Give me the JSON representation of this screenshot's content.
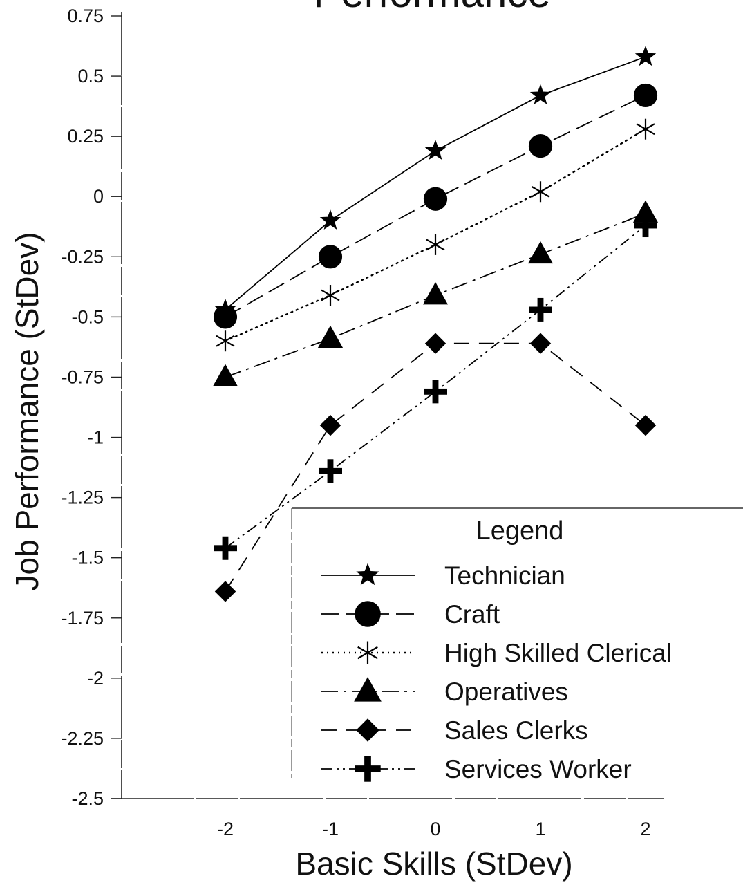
{
  "chart_data": {
    "type": "line",
    "title": "Performance",
    "xlabel": "Basic Skills (StDev)",
    "ylabel": "Job Performance (StDev)",
    "x": [
      -2,
      -1,
      0,
      1,
      2
    ],
    "xlim": [
      -3,
      3
    ],
    "ylim": [
      -2.5,
      0.75
    ],
    "x_ticks": [
      "-2",
      "-1",
      "0",
      "1",
      "2"
    ],
    "y_ticks": [
      "0.75",
      "0.5",
      "0.25",
      "0",
      "-0.25",
      "-0.5",
      "-0.75",
      "-1",
      "-1.25",
      "-1.5",
      "-1.75",
      "-2",
      "-2.25",
      "-2.5"
    ],
    "grid": false,
    "legend_title": "Legend",
    "legend_position": "bottom-right",
    "series": [
      {
        "name": "Technician",
        "marker": "star",
        "line_style": "solid",
        "values": [
          -0.47,
          -0.1,
          0.19,
          0.42,
          0.58
        ]
      },
      {
        "name": "Craft",
        "marker": "circle",
        "line_style": "dashed",
        "values": [
          -0.5,
          -0.25,
          -0.01,
          0.21,
          0.42
        ]
      },
      {
        "name": "High Skilled Clerical",
        "marker": "asterisk",
        "line_style": "dotted",
        "values": [
          -0.6,
          -0.41,
          -0.2,
          0.02,
          0.28
        ]
      },
      {
        "name": "Operatives",
        "marker": "triangle",
        "line_style": "dash-dot",
        "values": [
          -0.75,
          -0.59,
          -0.41,
          -0.24,
          -0.07
        ]
      },
      {
        "name": "Sales Clerks",
        "marker": "diamond",
        "line_style": "long-dash",
        "values": [
          -1.64,
          -0.95,
          -0.61,
          -0.61,
          -0.95
        ]
      },
      {
        "name": "Services Worker",
        "marker": "cross",
        "line_style": "dash-dot-dot",
        "values": [
          -1.46,
          -1.14,
          -0.81,
          -0.47,
          -0.12
        ]
      }
    ]
  }
}
